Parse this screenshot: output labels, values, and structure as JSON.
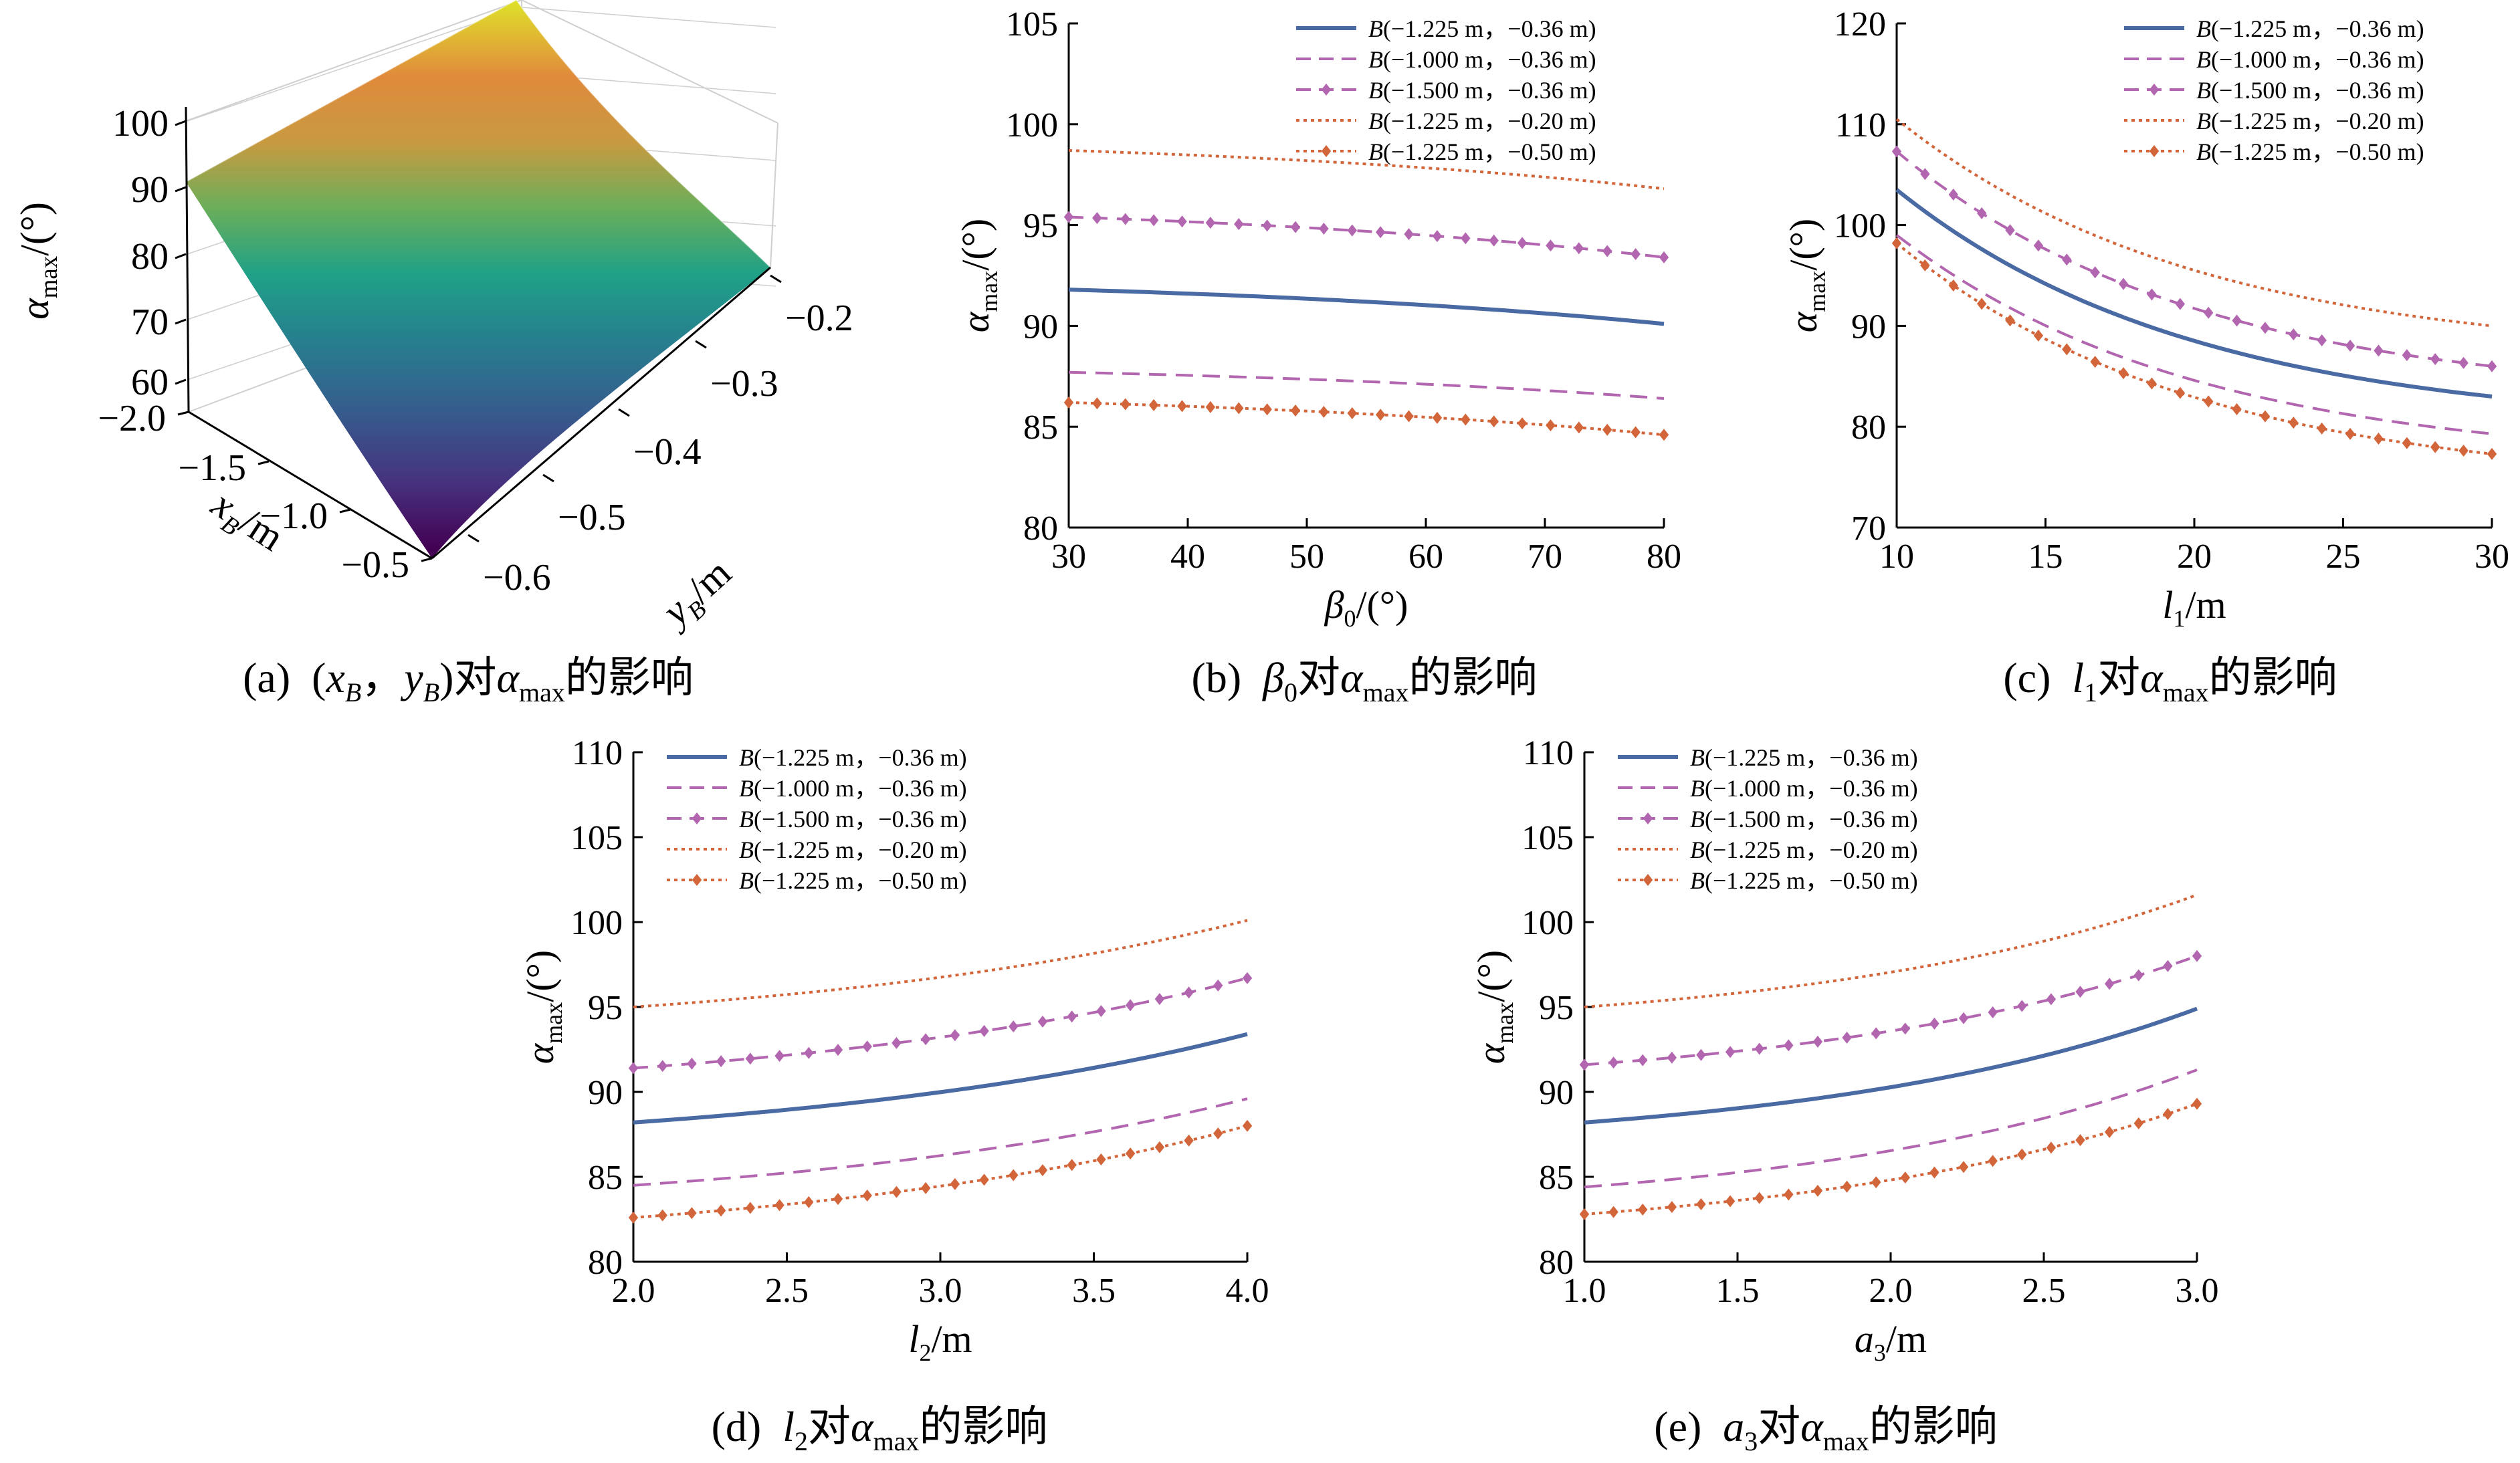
{
  "captions": {
    "a": {
      "label": "(a)",
      "pre": "(",
      "v1": "x",
      "s1": "B",
      "sep": "，",
      "v2": "y",
      "s2": "B",
      "post": ")对",
      "sym": "α",
      "sub": "max",
      "tail": "的影响"
    },
    "b": {
      "label": "(b)",
      "v": "β",
      "s": "0",
      "mid": "对",
      "sym": "α",
      "sub": "max",
      "tail": "的影响"
    },
    "c": {
      "label": "(c)",
      "v": "l",
      "s": "1",
      "mid": "对",
      "sym": "α",
      "sub": "max",
      "tail": "的影响"
    },
    "d": {
      "label": "(d)",
      "v": "l",
      "s": "2",
      "mid": "对",
      "sym": "α",
      "sub": "max",
      "tail": "的影响"
    },
    "e": {
      "label": "(e)",
      "v": "a",
      "s": "3",
      "mid": "对",
      "sym": "α",
      "sub": "max",
      "tail": "的影响"
    }
  },
  "legend_entries": [
    {
      "prefix": "B",
      "text": "(−1.225 m，−0.36 m)",
      "color": "#4a6aa4",
      "style": "solid"
    },
    {
      "prefix": "B",
      "text": "(−1.000 m，−0.36 m)",
      "color": "#b366b0",
      "style": "dashed"
    },
    {
      "prefix": "B",
      "text": "(−1.500 m，−0.36 m)",
      "color": "#b366b0",
      "style": "dash-diamond"
    },
    {
      "prefix": "B",
      "text": "(−1.225 m，−0.20 m)",
      "color": "#d2653a",
      "style": "dotted"
    },
    {
      "prefix": "B",
      "text": "(−1.225 m，−0.50 m)",
      "color": "#d2653a",
      "style": "dotted-diamond"
    }
  ],
  "chart_data": [
    {
      "id": "a",
      "type": "surface",
      "zlabel": {
        "sym": "α",
        "sub": "max",
        "unit": "/(°)"
      },
      "xlabel": {
        "sym": "x",
        "sub": "B",
        "unit": "/m"
      },
      "ylabel": {
        "sym": "y",
        "sub": "B",
        "unit": "/m"
      },
      "z_ticks": [
        "100",
        "90",
        "80",
        "70",
        "60"
      ],
      "x_ticks": [
        "−2.0",
        "−1.5",
        "−1.0",
        "−0.5"
      ],
      "y_ticks": [
        "−0.6",
        "−0.5",
        "−0.4",
        "−0.3",
        "−0.2"
      ],
      "xlim": [
        -2.0,
        -0.5
      ],
      "ylim": [
        -0.6,
        -0.2
      ],
      "zlim": [
        55,
        105
      ],
      "corners": [
        {
          "x": -2.0,
          "y": -0.2,
          "z": 105
        },
        {
          "x": -2.0,
          "y": -0.6,
          "z": 90
        },
        {
          "x": -0.5,
          "y": -0.2,
          "z": 77
        },
        {
          "x": -0.5,
          "y": -0.6,
          "z": 55
        }
      ],
      "colormap": "viridis",
      "grid": true
    },
    {
      "id": "b",
      "type": "line",
      "xlabel": {
        "sym": "β",
        "sub": "0",
        "unit": "/(°)"
      },
      "ylabel": {
        "sym": "α",
        "sub": "max",
        "unit": "/(°)"
      },
      "xlim": [
        30,
        80
      ],
      "ylim": [
        80,
        105
      ],
      "x_ticks": [
        30,
        40,
        50,
        60,
        70,
        80
      ],
      "y_ticks": [
        80,
        85,
        90,
        95,
        100,
        105
      ],
      "x_tick_labels": [
        "30",
        "40",
        "50",
        "60",
        "70",
        "80"
      ],
      "y_tick_labels": [
        "80",
        "85",
        "90",
        "95",
        "100",
        "105"
      ],
      "legend": "top-right",
      "series": [
        {
          "x": [
            30,
            80
          ],
          "start": 91.8,
          "end": 90.1,
          "curve": 1.2
        },
        {
          "x": [
            30,
            80
          ],
          "start": 87.7,
          "end": 86.4,
          "curve": 1.2
        },
        {
          "x": [
            30,
            80
          ],
          "start": 95.4,
          "end": 93.4,
          "curve": 1.2
        },
        {
          "x": [
            30,
            80
          ],
          "start": 98.7,
          "end": 96.8,
          "curve": 1.2
        },
        {
          "x": [
            30,
            80
          ],
          "start": 86.2,
          "end": 84.6,
          "curve": 1.2
        }
      ]
    },
    {
      "id": "c",
      "type": "line",
      "xlabel": {
        "sym": "l",
        "sub": "1",
        "unit": "/m"
      },
      "ylabel": {
        "sym": "α",
        "sub": "max",
        "unit": "/(°)"
      },
      "xlim": [
        10,
        30
      ],
      "ylim": [
        70,
        120
      ],
      "x_ticks": [
        10,
        15,
        20,
        25,
        30
      ],
      "y_ticks": [
        70,
        80,
        90,
        100,
        110,
        120
      ],
      "x_tick_labels": [
        "10",
        "15",
        "20",
        "25",
        "30"
      ],
      "y_tick_labels": [
        "70",
        "80",
        "90",
        "100",
        "110",
        "120"
      ],
      "legend": "top-right",
      "series": [
        {
          "x": [
            10,
            30
          ],
          "start": 103.5,
          "end": 83.0,
          "curve": 2.0
        },
        {
          "x": [
            10,
            30
          ],
          "start": 99.0,
          "end": 79.3,
          "curve": 2.0
        },
        {
          "x": [
            10,
            30
          ],
          "start": 107.3,
          "end": 86.0,
          "curve": 2.0
        },
        {
          "x": [
            10,
            30
          ],
          "start": 110.5,
          "end": 90.0,
          "curve": 2.0
        },
        {
          "x": [
            10,
            30
          ],
          "start": 98.2,
          "end": 77.3,
          "curve": 2.0
        }
      ]
    },
    {
      "id": "d",
      "type": "line",
      "xlabel": {
        "sym": "l",
        "sub": "2",
        "unit": "/m"
      },
      "ylabel": {
        "sym": "α",
        "sub": "max",
        "unit": "/(°)"
      },
      "xlim": [
        2.0,
        4.0
      ],
      "ylim": [
        80,
        110
      ],
      "x_ticks": [
        2.0,
        2.5,
        3.0,
        3.5,
        4.0
      ],
      "y_ticks": [
        80,
        85,
        90,
        95,
        100,
        105,
        110
      ],
      "x_tick_labels": [
        "2.0",
        "2.5",
        "3.0",
        "3.5",
        "4.0"
      ],
      "y_tick_labels": [
        "80",
        "85",
        "90",
        "95",
        "100",
        "105",
        "110"
      ],
      "legend": "top-left",
      "series": [
        {
          "x": [
            2.0,
            4.0
          ],
          "start": 88.2,
          "end": 93.4,
          "curve": 1.3
        },
        {
          "x": [
            2.0,
            4.0
          ],
          "start": 84.5,
          "end": 89.6,
          "curve": 1.3
        },
        {
          "x": [
            2.0,
            4.0
          ],
          "start": 91.4,
          "end": 96.7,
          "curve": 1.3
        },
        {
          "x": [
            2.0,
            4.0
          ],
          "start": 95.0,
          "end": 100.1,
          "curve": 1.3
        },
        {
          "x": [
            2.0,
            4.0
          ],
          "start": 82.6,
          "end": 88.0,
          "curve": 1.3
        }
      ]
    },
    {
      "id": "e",
      "type": "line",
      "xlabel": {
        "sym": "a",
        "sub": "3",
        "unit": "/m"
      },
      "ylabel": {
        "sym": "α",
        "sub": "max",
        "unit": "/(°)"
      },
      "xlim": [
        1.0,
        3.0
      ],
      "ylim": [
        80,
        110
      ],
      "x_ticks": [
        1.0,
        1.5,
        2.0,
        2.5,
        3.0
      ],
      "y_ticks": [
        80,
        85,
        90,
        95,
        100,
        105,
        110
      ],
      "x_tick_labels": [
        "1.0",
        "1.5",
        "2.0",
        "2.5",
        "3.0"
      ],
      "y_tick_labels": [
        "80",
        "85",
        "90",
        "95",
        "100",
        "105",
        "110"
      ],
      "legend": "top-left",
      "series": [
        {
          "x": [
            1.0,
            3.0
          ],
          "start": 88.2,
          "end": 94.9,
          "curve": 1.6
        },
        {
          "x": [
            1.0,
            3.0
          ],
          "start": 84.4,
          "end": 91.3,
          "curve": 1.6
        },
        {
          "x": [
            1.0,
            3.0
          ],
          "start": 91.6,
          "end": 98.0,
          "curve": 1.6
        },
        {
          "x": [
            1.0,
            3.0
          ],
          "start": 95.0,
          "end": 101.6,
          "curve": 1.6
        },
        {
          "x": [
            1.0,
            3.0
          ],
          "start": 82.8,
          "end": 89.3,
          "curve": 1.6
        }
      ]
    }
  ]
}
